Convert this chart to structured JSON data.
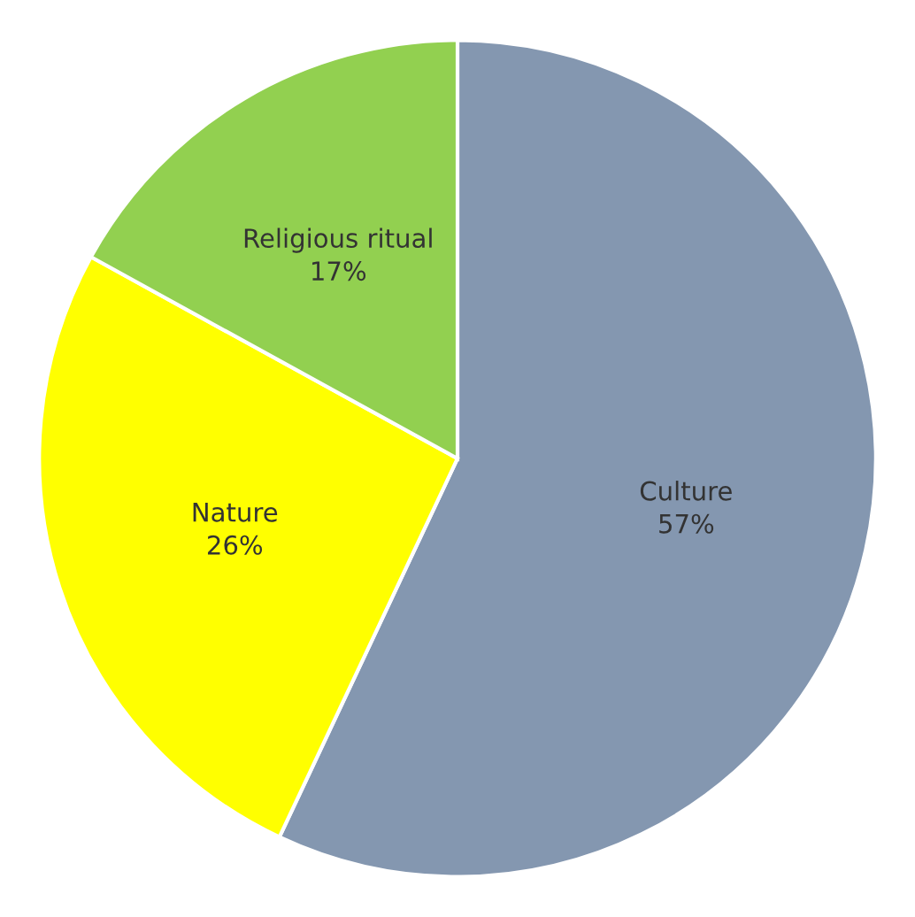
{
  "chart_data": {
    "type": "pie",
    "categories": [
      "Culture",
      "Nature",
      "Religious ritual"
    ],
    "values": [
      57,
      26,
      17
    ],
    "colors": [
      "#8497b0",
      "#ffff00",
      "#92d050"
    ],
    "value_labels": [
      "57%",
      "26%",
      "17%"
    ],
    "legend": false
  }
}
